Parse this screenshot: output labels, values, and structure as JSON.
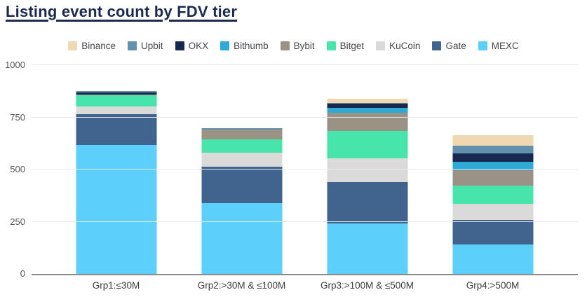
{
  "page": {
    "title": "Listing event count by FDV tier"
  },
  "chart_data": {
    "type": "bar",
    "stacked": true,
    "title": "Listing event count by FDV tier",
    "xlabel": "",
    "ylabel": "",
    "ylim": [
      0,
      1000
    ],
    "yticks": [
      0,
      250,
      500,
      750,
      1000
    ],
    "grid": true,
    "legend_position": "top",
    "stack_note": "bottom-to-top stacking is reverse of legend order (MEXC at bottom, Binance at top)",
    "categories": [
      "Grp1:≤30M",
      "Grp2:>30M & ≤100M",
      "Grp3:>100M & ≤500M",
      "Grp4:>500M"
    ],
    "series": [
      {
        "name": "Binance",
        "color": "#f1d8b0",
        "values": [
          0,
          0,
          18,
          50
        ]
      },
      {
        "name": "Upbit",
        "color": "#6290ad",
        "values": [
          7,
          9,
          5,
          36
        ]
      },
      {
        "name": "OKX",
        "color": "#152a4e",
        "values": [
          10,
          0,
          20,
          40
        ]
      },
      {
        "name": "Bithumb",
        "color": "#2fa9d6",
        "values": [
          0,
          0,
          23,
          41
        ]
      },
      {
        "name": "Bybit",
        "color": "#9a9285",
        "values": [
          3,
          44,
          87,
          73
        ]
      },
      {
        "name": "Bitget",
        "color": "#47e4ab",
        "values": [
          53,
          67,
          131,
          90
        ]
      },
      {
        "name": "KuCoin",
        "color": "#dadada",
        "values": [
          37,
          67,
          115,
          77
        ]
      },
      {
        "name": "Gate",
        "color": "#41648f",
        "values": [
          148,
          174,
          198,
          115
        ]
      },
      {
        "name": "MEXC",
        "color": "#5dcffb",
        "values": [
          618,
          338,
          241,
          142
        ]
      }
    ],
    "totals_approx": [
      876,
      699,
      838,
      664
    ]
  },
  "colors": {
    "title": "#1b2b4d",
    "legend_text": "#43474c",
    "ytick_text": "#555555",
    "xtick_text": "#3c3c3c",
    "gridline": "#e8e8e8",
    "axis_line": "#8a8a8a",
    "background": "#ffffff"
  }
}
